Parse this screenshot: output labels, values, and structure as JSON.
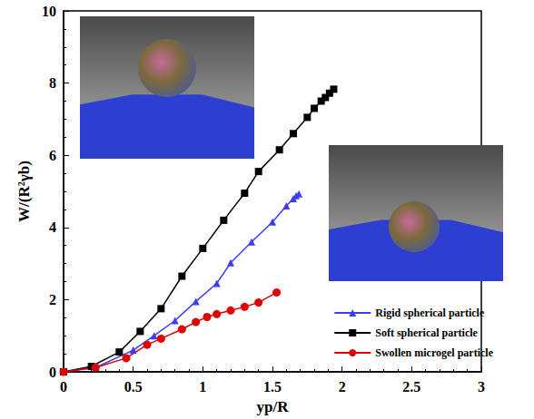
{
  "chart_data": {
    "type": "line",
    "x_label": "yp/R",
    "y_label": "W/(R²γb)",
    "xlim": [
      0,
      3
    ],
    "xticks": [
      0,
      0.5,
      1,
      1.5,
      2,
      2.5,
      3
    ],
    "ylim": [
      0,
      10
    ],
    "yticks": [
      0,
      2,
      4,
      6,
      8,
      10
    ],
    "grid": false,
    "legend": "lower right",
    "series": [
      {
        "name": "Rigid spherical particle",
        "color": "#3c3cff",
        "marker": "triangle",
        "x": [
          0,
          0.23,
          0.5,
          0.65,
          0.8,
          0.95,
          1.1,
          1.2,
          1.35,
          1.5,
          1.6,
          1.65,
          1.67,
          1.69
        ],
        "values": [
          0,
          0.12,
          0.6,
          1.0,
          1.42,
          1.95,
          2.45,
          3.02,
          3.6,
          4.15,
          4.6,
          4.8,
          4.88,
          4.93
        ]
      },
      {
        "name": "Soft spherical particle",
        "color": "#000000",
        "marker": "square",
        "x": [
          0,
          0.2,
          0.4,
          0.55,
          0.7,
          0.85,
          1.0,
          1.15,
          1.3,
          1.4,
          1.55,
          1.65,
          1.75,
          1.8,
          1.85,
          1.88,
          1.91,
          1.94
        ],
        "values": [
          0,
          0.15,
          0.55,
          1.12,
          1.75,
          2.65,
          3.42,
          4.2,
          4.95,
          5.55,
          6.15,
          6.6,
          7.05,
          7.3,
          7.5,
          7.6,
          7.72,
          7.83
        ]
      },
      {
        "name": "Swollen microgel particle",
        "color": "#e00000",
        "marker": "circle",
        "x": [
          0,
          0.23,
          0.45,
          0.6,
          0.7,
          0.85,
          0.95,
          1.03,
          1.1,
          1.2,
          1.3,
          1.4,
          1.53
        ],
        "values": [
          0,
          0.12,
          0.38,
          0.75,
          0.92,
          1.18,
          1.38,
          1.52,
          1.6,
          1.7,
          1.8,
          1.92,
          2.2
        ]
      }
    ]
  }
}
